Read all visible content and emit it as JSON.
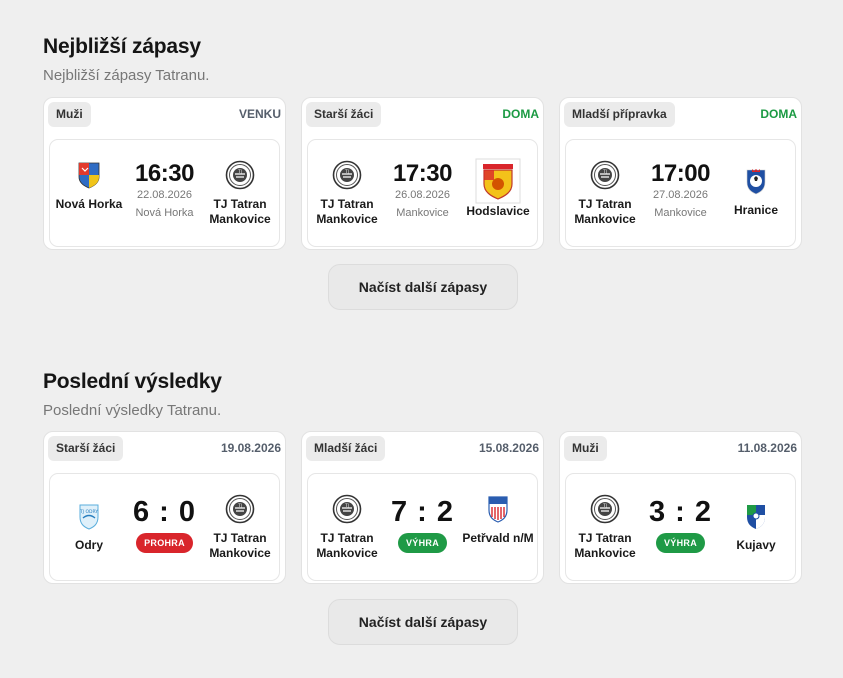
{
  "upcoming": {
    "title": "Nejbližší zápasy",
    "subtitle": "Nejbližší zápasy Tatranu.",
    "load_more": "Načíst další zápasy",
    "matches": [
      {
        "category": "Muži",
        "venue": "VENKU",
        "home": "Nová Horka",
        "away": "TJ Tatran Mankovice",
        "time": "16:30",
        "date": "22.08.2026",
        "place": "Nová Horka"
      },
      {
        "category": "Starší žáci",
        "venue": "DOMA",
        "home": "TJ Tatran Mankovice",
        "away": "Hodslavice",
        "time": "17:30",
        "date": "26.08.2026",
        "place": "Mankovice"
      },
      {
        "category": "Mladší přípravka",
        "venue": "DOMA",
        "home": "TJ Tatran Mankovice",
        "away": "Hranice",
        "time": "17:00",
        "date": "27.08.2026",
        "place": "Mankovice"
      }
    ]
  },
  "results": {
    "title": "Poslední výsledky",
    "subtitle": "Poslední výsledky Tatranu.",
    "load_more": "Načíst další zápasy",
    "matches": [
      {
        "category": "Starší žáci",
        "date": "19.08.2026",
        "home": "Odry",
        "away": "TJ Tatran Mankovice",
        "score": "6 : 0",
        "result": "PROHRA"
      },
      {
        "category": "Mladší žáci",
        "date": "15.08.2026",
        "home": "TJ Tatran Mankovice",
        "away": "Petřvald n/M",
        "score": "7 : 2",
        "result": "VÝHRA"
      },
      {
        "category": "Muži",
        "date": "11.08.2026",
        "home": "TJ Tatran Mankovice",
        "away": "Kujavy",
        "score": "3 : 2",
        "result": "VÝHRA"
      }
    ]
  },
  "colors": {
    "win": "#1f9a46",
    "loss": "#d9252b",
    "home_venue": "#1b9a43",
    "away_venue": "#555e6b"
  },
  "icons": {
    "tatran": "tatran-crest-icon",
    "nova_horka": "nova-horka-crest-icon",
    "hodslavice": "hodslavice-crest-icon",
    "hranice": "hranice-crest-icon",
    "odry": "odry-crest-icon",
    "petrvald": "petrvald-crest-icon",
    "kujavy": "kujavy-crest-icon"
  }
}
